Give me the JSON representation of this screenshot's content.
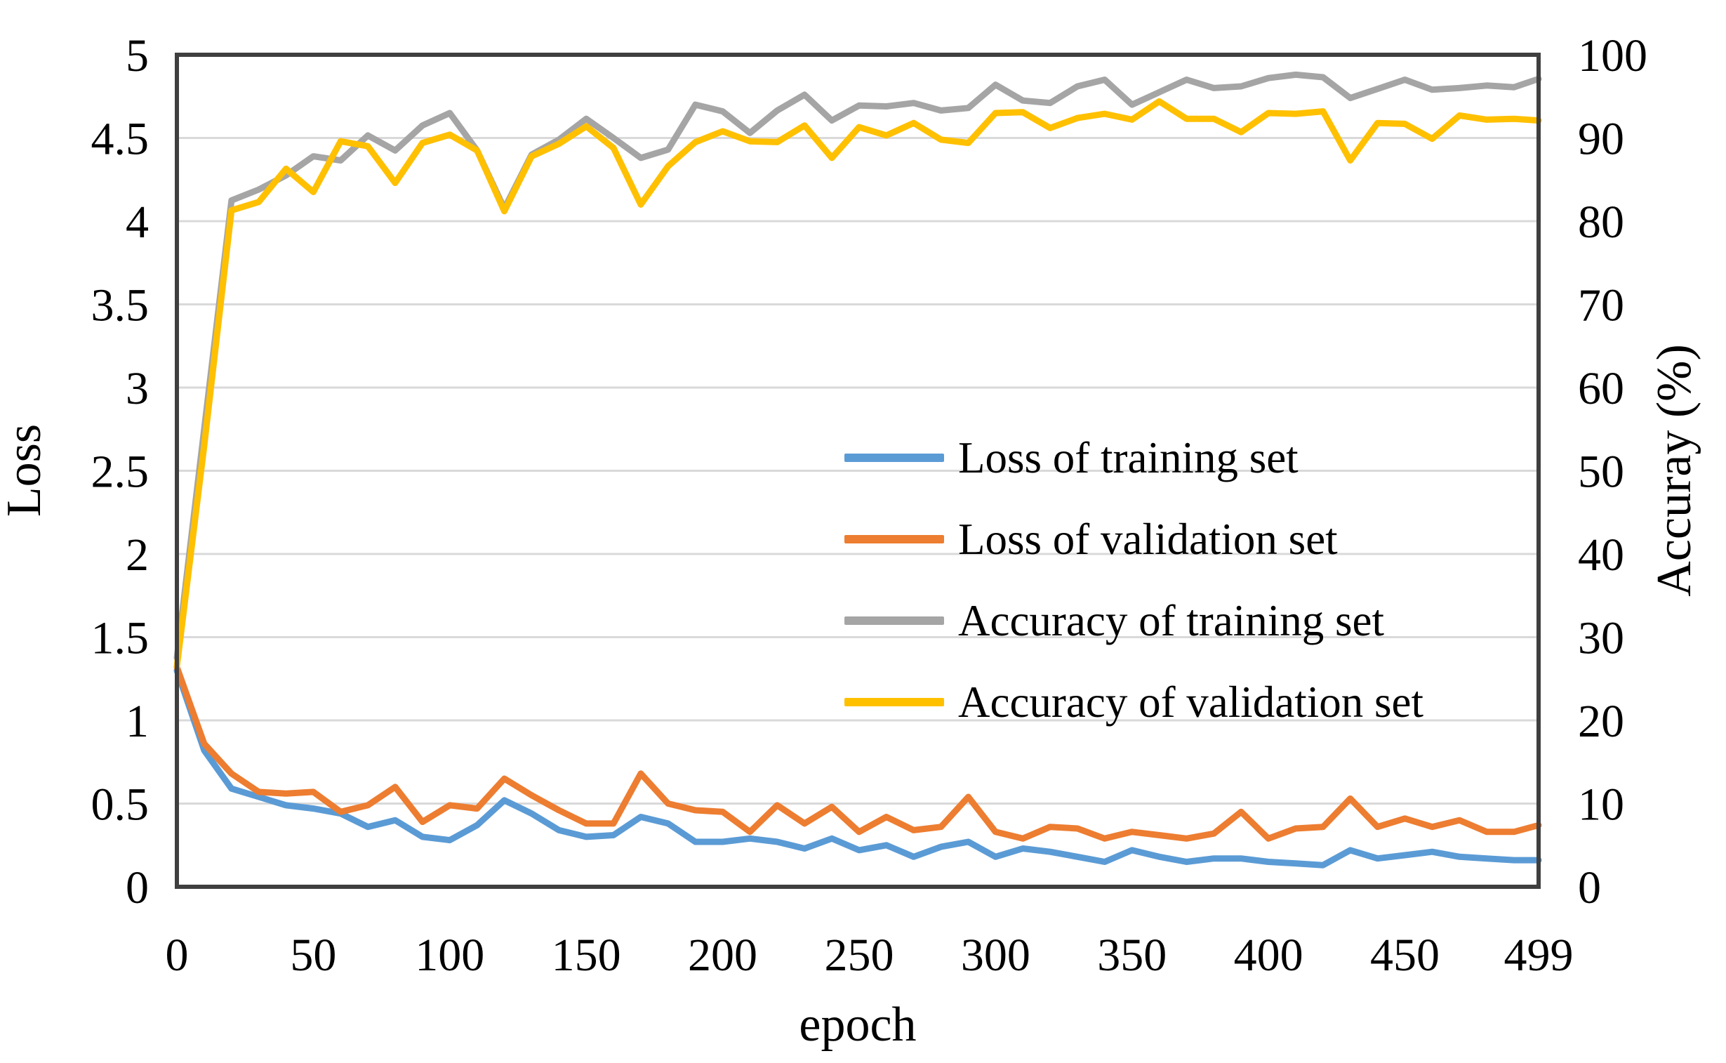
{
  "chart_data": {
    "type": "line",
    "title": "",
    "xlabel": "epoch",
    "ylabel_left": "Loss",
    "ylabel_right": "Accuray (%)",
    "grid": "horizontal",
    "legend_position": "inside-middle-right",
    "background": "#ffffff",
    "grid_color": "#d9d9d9",
    "frame_color": "#3f3f3f",
    "x_axis": {
      "min": 0,
      "max": 499,
      "ticks": [
        0,
        50,
        100,
        150,
        200,
        250,
        300,
        350,
        400,
        450,
        499
      ]
    },
    "y_left": {
      "min": 0,
      "max": 5,
      "ticks": [
        0,
        0.5,
        1,
        1.5,
        2,
        2.5,
        3,
        3.5,
        4,
        4.5,
        5
      ]
    },
    "y_right": {
      "min": 0,
      "max": 100,
      "ticks": [
        0,
        10,
        20,
        30,
        40,
        50,
        60,
        70,
        80,
        90,
        100
      ]
    },
    "x": [
      0,
      10,
      20,
      30,
      40,
      50,
      60,
      70,
      80,
      90,
      100,
      110,
      120,
      130,
      140,
      150,
      160,
      170,
      180,
      190,
      200,
      210,
      220,
      230,
      240,
      250,
      260,
      270,
      280,
      290,
      300,
      310,
      320,
      330,
      340,
      350,
      360,
      370,
      380,
      390,
      400,
      410,
      420,
      430,
      440,
      450,
      460,
      470,
      480,
      490,
      499
    ],
    "series": [
      {
        "name": "Loss of training set",
        "color": "#5b9bd5",
        "axis": "left",
        "values": [
          1.3,
          0.82,
          0.59,
          0.54,
          0.49,
          0.47,
          0.44,
          0.36,
          0.4,
          0.3,
          0.28,
          0.37,
          0.52,
          0.44,
          0.34,
          0.3,
          0.31,
          0.42,
          0.38,
          0.27,
          0.27,
          0.29,
          0.27,
          0.23,
          0.29,
          0.22,
          0.25,
          0.18,
          0.24,
          0.27,
          0.18,
          0.23,
          0.21,
          0.18,
          0.15,
          0.22,
          0.18,
          0.15,
          0.17,
          0.17,
          0.15,
          0.14,
          0.13,
          0.22,
          0.17,
          0.19,
          0.21,
          0.18,
          0.17,
          0.16,
          0.16
        ]
      },
      {
        "name": "Loss of validation set",
        "color": "#ed7d31",
        "axis": "left",
        "values": [
          1.32,
          0.86,
          0.68,
          0.57,
          0.56,
          0.57,
          0.45,
          0.49,
          0.6,
          0.39,
          0.49,
          0.47,
          0.65,
          0.55,
          0.46,
          0.38,
          0.38,
          0.68,
          0.5,
          0.46,
          0.45,
          0.33,
          0.49,
          0.38,
          0.48,
          0.33,
          0.42,
          0.34,
          0.36,
          0.54,
          0.33,
          0.29,
          0.36,
          0.35,
          0.29,
          0.33,
          0.31,
          0.29,
          0.32,
          0.45,
          0.29,
          0.35,
          0.36,
          0.53,
          0.36,
          0.41,
          0.36,
          0.4,
          0.33,
          0.33,
          0.37
        ]
      },
      {
        "name": "Accuracy of training set",
        "color": "#a5a5a5",
        "axis": "right",
        "values": [
          27.5,
          55,
          82.5,
          83.8,
          85.5,
          87.8,
          87.3,
          90.3,
          88.5,
          91.5,
          93.0,
          88.5,
          81.5,
          88.0,
          89.8,
          92.3,
          90.0,
          87.6,
          88.6,
          94.0,
          93.2,
          90.6,
          93.3,
          95.2,
          92.1,
          93.9,
          93.8,
          94.2,
          93.3,
          93.6,
          96.4,
          94.5,
          94.2,
          96.2,
          97.0,
          94.0,
          95.5,
          97.0,
          96.0,
          96.2,
          97.2,
          97.6,
          97.3,
          94.8,
          95.9,
          97.0,
          95.8,
          96.0,
          96.3,
          96.1,
          97.1
        ]
      },
      {
        "name": "Accuracy of validation set",
        "color": "#ffc000",
        "axis": "right",
        "values": [
          26.5,
          53,
          81.3,
          82.3,
          86.3,
          83.5,
          89.6,
          89.0,
          84.6,
          89.4,
          90.4,
          88.5,
          81.2,
          87.8,
          89.3,
          91.4,
          88.8,
          82.0,
          86.6,
          89.5,
          90.8,
          89.6,
          89.5,
          91.5,
          87.6,
          91.3,
          90.3,
          91.8,
          89.8,
          89.4,
          93.0,
          93.1,
          91.2,
          92.4,
          92.9,
          92.2,
          94.4,
          92.3,
          92.3,
          90.7,
          93.0,
          92.9,
          93.2,
          87.3,
          91.8,
          91.7,
          89.9,
          92.7,
          92.2,
          92.3,
          92.1
        ]
      }
    ]
  }
}
